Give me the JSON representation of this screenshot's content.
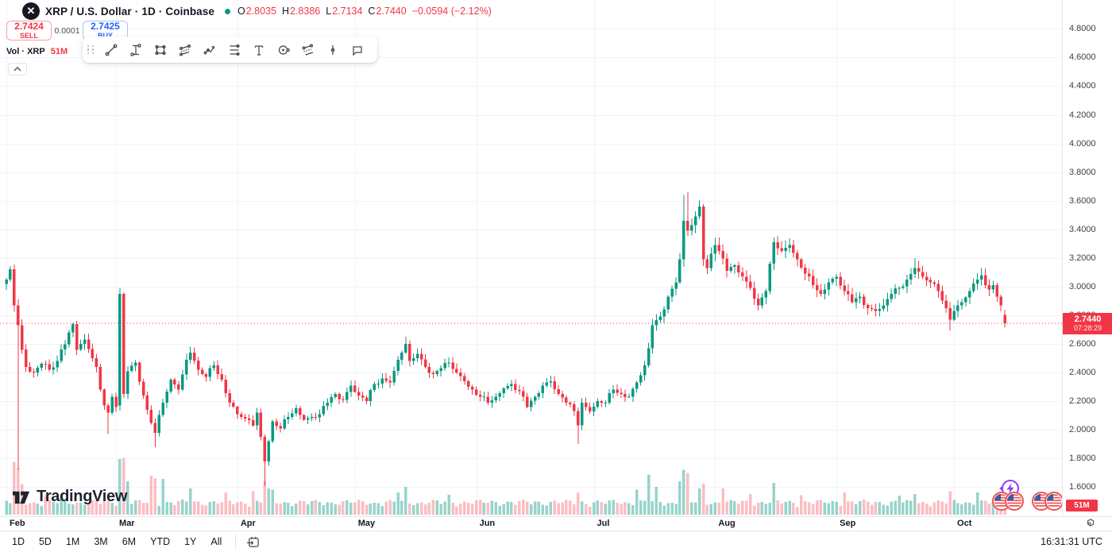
{
  "header": {
    "symbol": "XRP / U.S. Dollar",
    "interval": "1D",
    "exchange": "Coinbase",
    "separator": "·",
    "logo_letter": "X",
    "ohlc": {
      "o_label": "O",
      "o": "2.8035",
      "h_label": "H",
      "h": "2.8386",
      "l_label": "L",
      "l": "2.7134",
      "c_label": "C",
      "c": "2.7440",
      "change": "−0.0594 (−2.12%)"
    }
  },
  "trade_panel": {
    "sell_price": "2.7424",
    "sell_label": "SELL",
    "spread": "0.0001",
    "buy_price": "2.7425",
    "buy_label": "BUY"
  },
  "drawing_toolbar": {
    "tools": [
      "trend-line",
      "price-range",
      "rectangle",
      "parallel-channel",
      "path",
      "fib-retracement",
      "text",
      "circle",
      "fib-channel",
      "vertical-line",
      "comment"
    ]
  },
  "volume_row": {
    "label": "Vol · XRP",
    "value": "51M"
  },
  "price_axis": {
    "ticks": [
      "4.8000",
      "4.6000",
      "4.4000",
      "4.2000",
      "4.0000",
      "3.8000",
      "3.6000",
      "3.4000",
      "3.2000",
      "3.0000",
      "2.8000",
      "2.6000",
      "2.4000",
      "2.2000",
      "2.0000",
      "1.8000",
      "1.6000"
    ],
    "last_price_label": {
      "price": "2.7440",
      "countdown": "07:28:29"
    },
    "volume_badge": "51M"
  },
  "time_axis": {
    "months": [
      {
        "label": "Feb",
        "day": 0
      },
      {
        "label": "Mar",
        "day": 28
      },
      {
        "label": "Apr",
        "day": 59
      },
      {
        "label": "May",
        "day": 89
      },
      {
        "label": "Jun",
        "day": 120
      },
      {
        "label": "Jul",
        "day": 150
      },
      {
        "label": "Aug",
        "day": 181
      },
      {
        "label": "Sep",
        "day": 212
      },
      {
        "label": "Oct",
        "day": 242
      }
    ]
  },
  "bottom_bar": {
    "ranges": [
      "1D",
      "5D",
      "1M",
      "3M",
      "6M",
      "YTD",
      "1Y",
      "All"
    ],
    "utc_time": "16:31:31 UTC"
  },
  "watermark": "TradingView",
  "colors": {
    "up": "#089981",
    "down": "#f23645",
    "vol_up": "rgba(8,153,129,0.42)",
    "vol_down": "rgba(242,54,69,0.32)",
    "grid": "#f0f3fa",
    "accent_blue": "#2962ff",
    "event_purple": "#8b3df5",
    "flag_red": "#ef5350"
  },
  "chart_data": {
    "type": "candlestick",
    "symbol": "XRP/USD",
    "interval": "1D",
    "exchange": "Coinbase",
    "y_axis": {
      "visible_min": 1.6,
      "visible_max": 5.0,
      "tick_step": 0.2
    },
    "x_axis": {
      "total_days": 256,
      "month_start_days": [
        0,
        28,
        59,
        89,
        120,
        150,
        181,
        212,
        242
      ],
      "month_labels": [
        "Feb",
        "Mar",
        "Apr",
        "May",
        "Jun",
        "Jul",
        "Aug",
        "Sep",
        "Oct"
      ]
    },
    "current_price": 2.744,
    "last_candle": {
      "open": 2.8035,
      "high": 2.8386,
      "low": 2.7134,
      "close": 2.744,
      "change": -0.0594,
      "change_pct": -2.12
    },
    "first_open": 3.02,
    "close_waypoints": [
      [
        0,
        3.05
      ],
      [
        1,
        3.12
      ],
      [
        2,
        2.87
      ],
      [
        3,
        2.73
      ],
      [
        4,
        2.56
      ],
      [
        5,
        2.44
      ],
      [
        7,
        2.4
      ],
      [
        9,
        2.46
      ],
      [
        11,
        2.42
      ],
      [
        13,
        2.48
      ],
      [
        14,
        2.56
      ],
      [
        16,
        2.68
      ],
      [
        17,
        2.74
      ],
      [
        18,
        2.56
      ],
      [
        20,
        2.63
      ],
      [
        22,
        2.5
      ],
      [
        23,
        2.44
      ],
      [
        24,
        2.28
      ],
      [
        25,
        2.17
      ],
      [
        26,
        2.12
      ],
      [
        27,
        2.23
      ],
      [
        28,
        2.16
      ],
      [
        29,
        2.95
      ],
      [
        30,
        2.25
      ],
      [
        31,
        2.41
      ],
      [
        33,
        2.47
      ],
      [
        35,
        2.24
      ],
      [
        36,
        2.14
      ],
      [
        38,
        1.98
      ],
      [
        40,
        2.19
      ],
      [
        42,
        2.35
      ],
      [
        44,
        2.28
      ],
      [
        46,
        2.49
      ],
      [
        47,
        2.54
      ],
      [
        49,
        2.42
      ],
      [
        51,
        2.37
      ],
      [
        53,
        2.45
      ],
      [
        55,
        2.35
      ],
      [
        57,
        2.19
      ],
      [
        59,
        2.11
      ],
      [
        61,
        2.08
      ],
      [
        63,
        2.03
      ],
      [
        64,
        2.12
      ],
      [
        65,
        1.95
      ],
      [
        66,
        1.78
      ],
      [
        67,
        1.92
      ],
      [
        68,
        2.06
      ],
      [
        70,
        2.01
      ],
      [
        72,
        2.09
      ],
      [
        74,
        2.15
      ],
      [
        76,
        2.07
      ],
      [
        78,
        2.09
      ],
      [
        80,
        2.11
      ],
      [
        82,
        2.19
      ],
      [
        84,
        2.25
      ],
      [
        86,
        2.21
      ],
      [
        88,
        2.31
      ],
      [
        90,
        2.24
      ],
      [
        92,
        2.2
      ],
      [
        94,
        2.32
      ],
      [
        96,
        2.36
      ],
      [
        98,
        2.33
      ],
      [
        100,
        2.49
      ],
      [
        102,
        2.6
      ],
      [
        103,
        2.48
      ],
      [
        105,
        2.53
      ],
      [
        107,
        2.44
      ],
      [
        109,
        2.39
      ],
      [
        111,
        2.43
      ],
      [
        113,
        2.47
      ],
      [
        115,
        2.4
      ],
      [
        117,
        2.34
      ],
      [
        119,
        2.28
      ],
      [
        121,
        2.23
      ],
      [
        123,
        2.19
      ],
      [
        125,
        2.23
      ],
      [
        127,
        2.29
      ],
      [
        129,
        2.32
      ],
      [
        131,
        2.27
      ],
      [
        133,
        2.16
      ],
      [
        135,
        2.23
      ],
      [
        137,
        2.31
      ],
      [
        139,
        2.34
      ],
      [
        141,
        2.25
      ],
      [
        143,
        2.19
      ],
      [
        145,
        2.13
      ],
      [
        146,
        2.03
      ],
      [
        147,
        2.19
      ],
      [
        149,
        2.13
      ],
      [
        151,
        2.2
      ],
      [
        153,
        2.19
      ],
      [
        155,
        2.28
      ],
      [
        157,
        2.25
      ],
      [
        159,
        2.23
      ],
      [
        161,
        2.33
      ],
      [
        163,
        2.45
      ],
      [
        164,
        2.57
      ],
      [
        165,
        2.73
      ],
      [
        167,
        2.79
      ],
      [
        169,
        2.93
      ],
      [
        171,
        3.03
      ],
      [
        172,
        3.19
      ],
      [
        173,
        3.46
      ],
      [
        174,
        3.39
      ],
      [
        175,
        3.43
      ],
      [
        176,
        3.49
      ],
      [
        177,
        3.56
      ],
      [
        178,
        3.19
      ],
      [
        179,
        3.13
      ],
      [
        180,
        3.23
      ],
      [
        181,
        3.29
      ],
      [
        182,
        3.25
      ],
      [
        184,
        3.11
      ],
      [
        186,
        3.15
      ],
      [
        188,
        3.07
      ],
      [
        190,
        2.99
      ],
      [
        192,
        2.87
      ],
      [
        194,
        2.97
      ],
      [
        196,
        3.31
      ],
      [
        198,
        3.25
      ],
      [
        200,
        3.29
      ],
      [
        202,
        3.19
      ],
      [
        204,
        3.09
      ],
      [
        206,
        3.01
      ],
      [
        208,
        2.95
      ],
      [
        210,
        3.03
      ],
      [
        212,
        3.07
      ],
      [
        214,
        2.97
      ],
      [
        216,
        2.89
      ],
      [
        218,
        2.93
      ],
      [
        220,
        2.85
      ],
      [
        222,
        2.83
      ],
      [
        224,
        2.87
      ],
      [
        226,
        2.95
      ],
      [
        228,
        2.99
      ],
      [
        230,
        3.05
      ],
      [
        232,
        3.13
      ],
      [
        234,
        3.07
      ],
      [
        236,
        3.03
      ],
      [
        238,
        2.97
      ],
      [
        240,
        2.85
      ],
      [
        241,
        2.77
      ],
      [
        242,
        2.83
      ],
      [
        244,
        2.89
      ],
      [
        246,
        2.97
      ],
      [
        248,
        3.05
      ],
      [
        249,
        3.08
      ],
      [
        250,
        3.01
      ],
      [
        251,
        2.98
      ],
      [
        252,
        3.01
      ],
      [
        253,
        2.93
      ],
      [
        254,
        2.87
      ],
      [
        255,
        2.744
      ]
    ],
    "candle_overrides": [
      {
        "d": 3,
        "low": 1.72
      },
      {
        "d": 26,
        "low": 1.97
      },
      {
        "d": 29,
        "open": 2.17,
        "high": 2.99
      },
      {
        "d": 30,
        "high": 2.96
      },
      {
        "d": 38,
        "low": 1.88
      },
      {
        "d": 66,
        "low": 1.61
      },
      {
        "d": 102,
        "high": 2.65
      },
      {
        "d": 146,
        "low": 1.9
      },
      {
        "d": 173,
        "high": 3.64
      },
      {
        "d": 174,
        "high": 3.66
      },
      {
        "d": 177,
        "high": 3.6
      },
      {
        "d": 232,
        "high": 3.2
      },
      {
        "d": 241,
        "low": 2.69
      },
      {
        "d": 255,
        "open": 2.8035,
        "high": 2.8386,
        "low": 2.7134,
        "close": 2.744
      }
    ],
    "volume": {
      "unit": "M",
      "last": 51,
      "spikes": [
        [
          2,
          190
        ],
        [
          3,
          168
        ],
        [
          4,
          110
        ],
        [
          10,
          70
        ],
        [
          14,
          75
        ],
        [
          29,
          200
        ],
        [
          30,
          205
        ],
        [
          31,
          120
        ],
        [
          37,
          140
        ],
        [
          38,
          130
        ],
        [
          40,
          128
        ],
        [
          47,
          95
        ],
        [
          56,
          80
        ],
        [
          63,
          85
        ],
        [
          66,
          120
        ],
        [
          67,
          95
        ],
        [
          68,
          90
        ],
        [
          100,
          80
        ],
        [
          102,
          100
        ],
        [
          113,
          72
        ],
        [
          146,
          80
        ],
        [
          161,
          90
        ],
        [
          164,
          145
        ],
        [
          166,
          100
        ],
        [
          172,
          120
        ],
        [
          173,
          162
        ],
        [
          174,
          150
        ],
        [
          177,
          95
        ],
        [
          178,
          112
        ],
        [
          183,
          95
        ],
        [
          190,
          75
        ],
        [
          196,
          115
        ],
        [
          203,
          70
        ],
        [
          214,
          80
        ],
        [
          228,
          68
        ],
        [
          232,
          75
        ],
        [
          241,
          85
        ],
        [
          248,
          80
        ],
        [
          255,
          51
        ]
      ]
    }
  }
}
